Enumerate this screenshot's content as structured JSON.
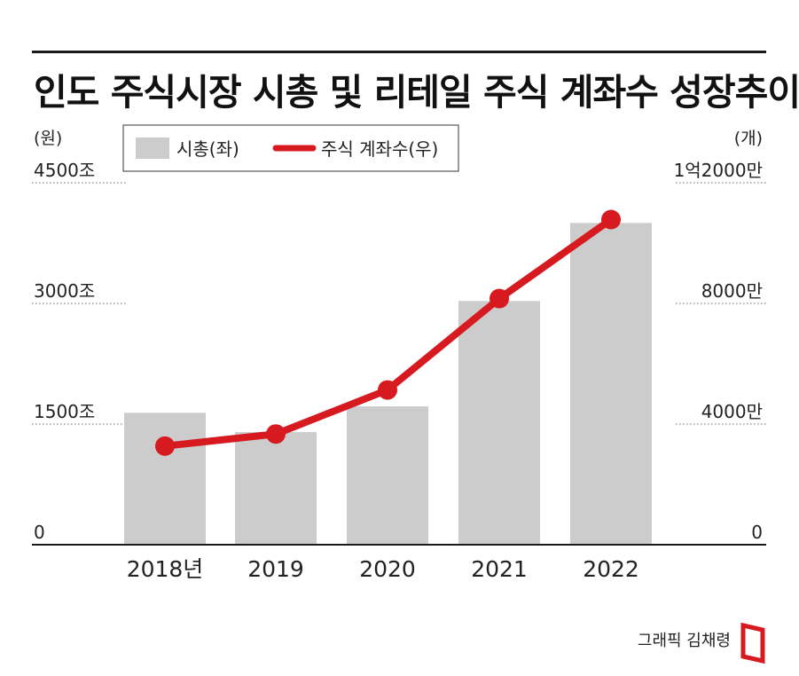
{
  "title": "인도 주식시장 시총 및 리테일 주식 계좌수 성장추이",
  "credit": "그래픽 김채령",
  "colors": {
    "bar": "#cccccc",
    "line": "#d71920",
    "text": "#222222",
    "rule": "#1a1a1a"
  },
  "chart_data": {
    "type": "bar",
    "categories": [
      "2018년",
      "2019",
      "2020",
      "2021",
      "2022"
    ],
    "series": [
      {
        "name": "시총(좌)",
        "type": "bar",
        "axis": "left",
        "values": [
          1640,
          1400,
          1720,
          3030,
          4000
        ]
      },
      {
        "name": "주식 계좌수(우)",
        "type": "line",
        "axis": "right",
        "values": [
          32700000,
          36700000,
          51300000,
          81600000,
          107800000
        ]
      }
    ],
    "left_axis": {
      "unit": "(원)",
      "ticks": [
        "0",
        "1500조",
        "3000조",
        "4500조"
      ],
      "tick_values": [
        0,
        1500,
        3000,
        4500
      ],
      "ylim": [
        0,
        4500
      ]
    },
    "right_axis": {
      "unit": "(개)",
      "ticks": [
        "0",
        "4000만",
        "8000만",
        "1억2000만"
      ],
      "tick_values": [
        0,
        40000000,
        80000000,
        120000000
      ],
      "ylim": [
        0,
        120000000
      ]
    },
    "legend": [
      "시총(좌)",
      "주식 계좌수(우)"
    ],
    "legend_position": "top-left",
    "grid": "dotted"
  }
}
